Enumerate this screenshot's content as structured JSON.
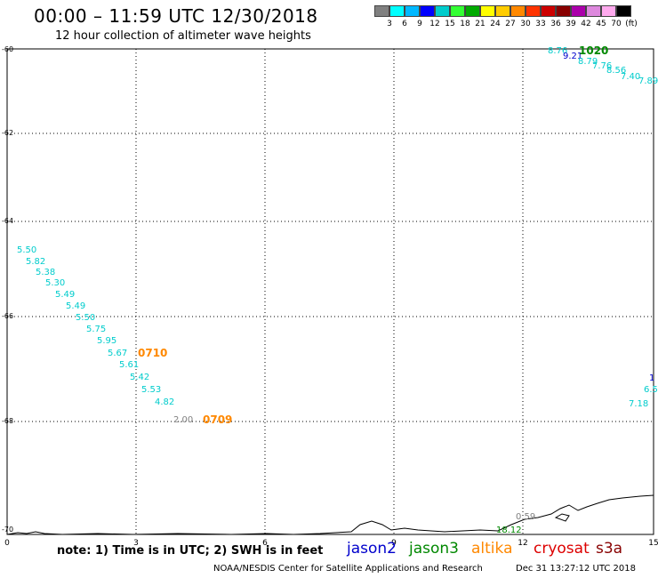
{
  "header": {
    "title": "00:00 – 11:59 UTC 12/30/2018",
    "subtitle": "12 hour collection of altimeter wave heights"
  },
  "colorbar": {
    "colors": [
      "#808080",
      "#00ffff",
      "#00b8ff",
      "#0000ff",
      "#00cccc",
      "#33ff33",
      "#00aa00",
      "#ffff00",
      "#ffcc00",
      "#ff8800",
      "#ff3300",
      "#cc0000",
      "#880000",
      "#aa00aa",
      "#dd88dd",
      "#ffaaee",
      "#000000"
    ],
    "labels": [
      "3",
      "6",
      "9",
      "12",
      "15",
      "18",
      "21",
      "24",
      "27",
      "30",
      "33",
      "36",
      "39",
      "42",
      "45",
      "70",
      "(ft)"
    ]
  },
  "axes": {
    "y_labels": [
      "-60",
      "-62",
      "-64",
      "-66",
      "-68",
      "-70"
    ],
    "x_labels": [
      "0",
      "3",
      "6",
      "9",
      "12",
      "15"
    ]
  },
  "observations": [
    {
      "text": "8.76",
      "color": "#00cccc"
    },
    {
      "text": "9.21",
      "color": "#0000cc"
    },
    {
      "text": "1020",
      "color": "#008800"
    },
    {
      "text": "8.79",
      "color": "#00cccc"
    },
    {
      "text": "7.76",
      "color": "#00cccc"
    },
    {
      "text": "8.56",
      "color": "#00cccc"
    },
    {
      "text": "7.40",
      "color": "#00cccc"
    },
    {
      "text": "7.89",
      "color": "#00cccc"
    },
    {
      "text": "5.50",
      "color": "#00cccc"
    },
    {
      "text": "5.82",
      "color": "#00cccc"
    },
    {
      "text": "5.38",
      "color": "#00cccc"
    },
    {
      "text": "5.30",
      "color": "#00cccc"
    },
    {
      "text": "5.49",
      "color": "#00cccc"
    },
    {
      "text": "5.49",
      "color": "#00cccc"
    },
    {
      "text": "5.50",
      "color": "#00cccc"
    },
    {
      "text": "5.75",
      "color": "#00cccc"
    },
    {
      "text": "5.95",
      "color": "#00cccc"
    },
    {
      "text": "5.67",
      "color": "#00cccc"
    },
    {
      "text": "0710",
      "color": "#ff8800"
    },
    {
      "text": "5.61",
      "color": "#00cccc"
    },
    {
      "text": "5.42",
      "color": "#00cccc"
    },
    {
      "text": "5.53",
      "color": "#00cccc"
    },
    {
      "text": "4.82",
      "color": "#00cccc"
    },
    {
      "text": "2.00",
      "color": "#808080"
    },
    {
      "text": "0709",
      "color": "#ff8800"
    },
    {
      "text": "1",
      "color": "#0000cc"
    },
    {
      "text": "6.5",
      "color": "#00cccc"
    },
    {
      "text": "7.18",
      "color": "#00cccc"
    },
    {
      "text": "0.59",
      "color": "#808080"
    },
    {
      "text": "18.12",
      "color": "#008800"
    }
  ],
  "footer": {
    "note": "note: 1) Time is in UTC; 2) SWH is in feet",
    "satellites": [
      {
        "name": "jason2",
        "color": "#0000cc"
      },
      {
        "name": "jason3",
        "color": "#008800"
      },
      {
        "name": "altika",
        "color": "#ff8800"
      },
      {
        "name": "cryosat",
        "color": "#dd0000"
      },
      {
        "name": "s3a",
        "color": "#880000"
      }
    ],
    "credit": "NOAA/NESDIS Center for Satellite Applications and Research",
    "timestamp": "Dec 31 13:27:12 UTC 2018"
  }
}
